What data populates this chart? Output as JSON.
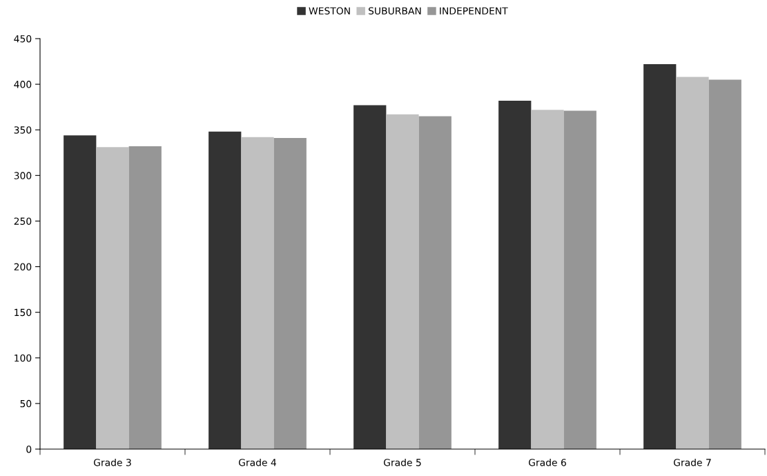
{
  "chart_data": {
    "type": "bar",
    "categories": [
      "Grade 3",
      "Grade 4",
      "Grade 5",
      "Grade 6",
      "Grade 7"
    ],
    "series": [
      {
        "name": "WESTON",
        "color": "#333333",
        "values": [
          344,
          348,
          377,
          382,
          422
        ]
      },
      {
        "name": "SUBURBAN",
        "color": "#c0c0c0",
        "values": [
          331,
          342,
          367,
          372,
          408
        ]
      },
      {
        "name": "INDEPENDENT",
        "color": "#969696",
        "values": [
          332,
          341,
          365,
          371,
          405
        ]
      }
    ],
    "ylim": [
      0,
      450
    ],
    "yticks": [
      0,
      50,
      100,
      150,
      200,
      250,
      300,
      350,
      400,
      450
    ],
    "grid": false,
    "legend": "top"
  }
}
